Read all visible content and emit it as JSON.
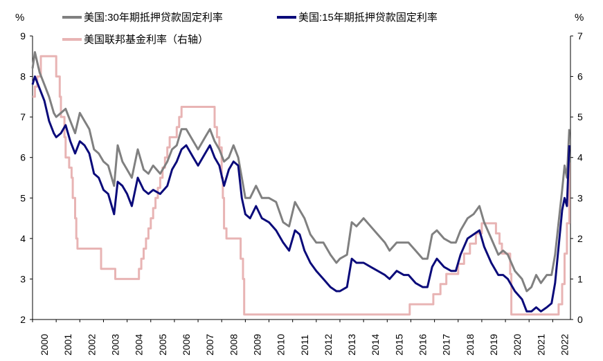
{
  "chart_data": {
    "type": "line",
    "title": "",
    "xlabel": "",
    "ylabel_left": "%",
    "ylabel_right": "%",
    "xlim": [
      2000,
      2022.75
    ],
    "ylim_left": [
      2,
      9
    ],
    "ylim_right": [
      0,
      7
    ],
    "left_ticks": [
      "2",
      "3",
      "4",
      "5",
      "6",
      "7",
      "8",
      "9"
    ],
    "right_ticks": [
      "0",
      "1",
      "2",
      "3",
      "4",
      "5",
      "6",
      "7"
    ],
    "x_ticks": [
      "2000",
      "2001",
      "2002",
      "2003",
      "2004",
      "2005",
      "2006",
      "2007",
      "2008",
      "2009",
      "2010",
      "2011",
      "2012",
      "2013",
      "2014",
      "2015",
      "2016",
      "2017",
      "2018",
      "2019",
      "2020",
      "2021",
      "2022"
    ],
    "grid": false,
    "legend_position": "top",
    "series": [
      {
        "name": "美国:30年期抵押贷款固定利率",
        "axis": "left",
        "color": "#808080",
        "x": [
          2000.0,
          2000.1,
          2000.3,
          2000.5,
          2000.7,
          2000.9,
          2001.0,
          2001.2,
          2001.4,
          2001.6,
          2001.8,
          2002.0,
          2002.2,
          2002.4,
          2002.6,
          2002.8,
          2003.0,
          2003.2,
          2003.45,
          2003.6,
          2003.8,
          2004.0,
          2004.2,
          2004.45,
          2004.7,
          2004.9,
          2005.1,
          2005.4,
          2005.7,
          2005.9,
          2006.1,
          2006.3,
          2006.5,
          2006.8,
          2007.0,
          2007.3,
          2007.5,
          2007.7,
          2007.9,
          2008.1,
          2008.3,
          2008.5,
          2008.7,
          2008.85,
          2009.0,
          2009.2,
          2009.45,
          2009.7,
          2010.0,
          2010.3,
          2010.6,
          2010.85,
          2011.1,
          2011.3,
          2011.5,
          2011.75,
          2012.0,
          2012.3,
          2012.6,
          2012.85,
          2013.0,
          2013.3,
          2013.5,
          2013.7,
          2014.0,
          2014.3,
          2014.6,
          2014.9,
          2015.1,
          2015.4,
          2015.7,
          2015.9,
          2016.2,
          2016.5,
          2016.7,
          2016.9,
          2017.1,
          2017.4,
          2017.7,
          2017.9,
          2018.1,
          2018.4,
          2018.65,
          2018.9,
          2019.1,
          2019.4,
          2019.7,
          2019.9,
          2020.1,
          2020.4,
          2020.7,
          2020.9,
          2021.1,
          2021.3,
          2021.5,
          2021.75,
          2021.95,
          2022.1,
          2022.25,
          2022.4,
          2022.5,
          2022.6,
          2022.7
        ],
        "values": [
          8.2,
          8.6,
          8.1,
          7.8,
          7.5,
          7.1,
          7.0,
          7.1,
          7.2,
          6.9,
          6.6,
          7.1,
          6.9,
          6.7,
          6.2,
          6.1,
          5.9,
          5.8,
          5.3,
          6.3,
          5.9,
          5.7,
          5.5,
          6.2,
          5.7,
          5.6,
          5.8,
          5.6,
          5.9,
          6.2,
          6.3,
          6.7,
          6.7,
          6.4,
          6.2,
          6.5,
          6.7,
          6.4,
          6.2,
          5.9,
          6.0,
          6.3,
          6.0,
          5.5,
          5.0,
          5.0,
          5.3,
          5.0,
          5.0,
          4.9,
          4.4,
          4.3,
          4.9,
          4.7,
          4.5,
          4.1,
          3.9,
          3.9,
          3.6,
          3.4,
          3.5,
          3.6,
          4.4,
          4.3,
          4.5,
          4.3,
          4.1,
          3.9,
          3.7,
          3.9,
          3.9,
          3.9,
          3.7,
          3.5,
          3.5,
          4.1,
          4.2,
          4.0,
          3.9,
          3.9,
          4.2,
          4.5,
          4.6,
          4.8,
          4.4,
          4.0,
          3.6,
          3.7,
          3.6,
          3.2,
          3.0,
          2.7,
          2.8,
          3.1,
          2.9,
          3.1,
          3.1,
          3.6,
          4.4,
          5.2,
          5.8,
          5.5,
          6.7
        ]
      },
      {
        "name": "美国:15年期抵押贷款固定利率",
        "axis": "left",
        "color": "#0a0a7a",
        "x": [
          2000.0,
          2000.1,
          2000.3,
          2000.5,
          2000.7,
          2000.9,
          2001.0,
          2001.2,
          2001.4,
          2001.6,
          2001.8,
          2002.0,
          2002.2,
          2002.4,
          2002.6,
          2002.8,
          2003.0,
          2003.2,
          2003.45,
          2003.6,
          2003.8,
          2004.0,
          2004.2,
          2004.45,
          2004.7,
          2004.9,
          2005.1,
          2005.4,
          2005.7,
          2005.9,
          2006.1,
          2006.3,
          2006.5,
          2006.8,
          2007.0,
          2007.3,
          2007.5,
          2007.7,
          2007.9,
          2008.1,
          2008.3,
          2008.5,
          2008.7,
          2008.85,
          2009.0,
          2009.2,
          2009.45,
          2009.7,
          2010.0,
          2010.3,
          2010.6,
          2010.85,
          2011.1,
          2011.3,
          2011.5,
          2011.75,
          2012.0,
          2012.3,
          2012.6,
          2012.85,
          2013.0,
          2013.3,
          2013.5,
          2013.7,
          2014.0,
          2014.3,
          2014.6,
          2014.9,
          2015.1,
          2015.4,
          2015.7,
          2015.9,
          2016.2,
          2016.5,
          2016.7,
          2016.9,
          2017.1,
          2017.4,
          2017.7,
          2017.9,
          2018.1,
          2018.4,
          2018.65,
          2018.9,
          2019.1,
          2019.4,
          2019.7,
          2019.9,
          2020.1,
          2020.4,
          2020.7,
          2020.9,
          2021.1,
          2021.3,
          2021.5,
          2021.75,
          2021.95,
          2022.1,
          2022.25,
          2022.4,
          2022.5,
          2022.6,
          2022.7
        ],
        "values": [
          7.8,
          8.0,
          7.7,
          7.4,
          6.9,
          6.6,
          6.5,
          6.6,
          6.8,
          6.4,
          6.1,
          6.4,
          6.3,
          6.1,
          5.6,
          5.5,
          5.2,
          5.1,
          4.6,
          5.4,
          5.3,
          5.1,
          4.8,
          5.5,
          5.2,
          5.1,
          5.2,
          5.1,
          5.3,
          5.7,
          5.9,
          6.2,
          6.3,
          6.0,
          5.8,
          6.1,
          6.3,
          6.0,
          5.8,
          5.3,
          5.7,
          5.9,
          5.8,
          5.0,
          4.6,
          4.5,
          4.8,
          4.5,
          4.4,
          4.2,
          3.9,
          3.7,
          4.2,
          4.1,
          3.7,
          3.4,
          3.2,
          3.0,
          2.8,
          2.7,
          2.7,
          2.8,
          3.5,
          3.4,
          3.4,
          3.3,
          3.2,
          3.1,
          3.0,
          3.2,
          3.1,
          3.1,
          2.9,
          2.8,
          2.8,
          3.3,
          3.5,
          3.3,
          3.2,
          3.2,
          3.6,
          4.0,
          4.1,
          4.2,
          3.8,
          3.4,
          3.1,
          3.1,
          3.0,
          2.7,
          2.5,
          2.2,
          2.2,
          2.3,
          2.2,
          2.3,
          2.4,
          2.9,
          3.8,
          4.7,
          5.0,
          4.8,
          6.3
        ]
      },
      {
        "name": "美国联邦基金利率（右轴）",
        "axis": "right",
        "color": "#e8b4b4",
        "x": [
          2000.0,
          2000.05,
          2000.1,
          2000.15,
          2000.2,
          2000.3,
          2000.35,
          2000.4,
          2000.45,
          2000.9,
          2001.0,
          2001.1,
          2001.15,
          2001.2,
          2001.3,
          2001.35,
          2001.4,
          2001.45,
          2001.55,
          2001.65,
          2001.7,
          2001.8,
          2001.85,
          2001.9,
          2002.0,
          2002.85,
          2002.9,
          2003.45,
          2003.5,
          2004.45,
          2004.5,
          2004.6,
          2004.7,
          2004.8,
          2004.9,
          2005.0,
          2005.1,
          2005.2,
          2005.3,
          2005.4,
          2005.5,
          2005.6,
          2005.7,
          2005.8,
          2005.9,
          2006.0,
          2006.1,
          2006.2,
          2006.3,
          2006.4,
          2006.5,
          2007.65,
          2007.7,
          2007.8,
          2007.9,
          2008.0,
          2008.05,
          2008.1,
          2008.2,
          2008.3,
          2008.75,
          2008.8,
          2008.9,
          2008.95,
          2015.9,
          2015.95,
          2016.9,
          2016.95,
          2017.2,
          2017.25,
          2017.45,
          2017.5,
          2017.95,
          2018.0,
          2018.2,
          2018.25,
          2018.45,
          2018.5,
          2018.7,
          2018.75,
          2018.95,
          2019.0,
          2019.55,
          2019.6,
          2019.7,
          2019.75,
          2019.8,
          2019.85,
          2020.15,
          2020.2,
          2020.25,
          2021.85,
          2022.2,
          2022.25,
          2022.35,
          2022.4,
          2022.45,
          2022.5,
          2022.55,
          2022.6,
          2022.7
        ],
        "values": [
          5.5,
          5.5,
          5.75,
          5.75,
          6.0,
          6.0,
          6.5,
          6.5,
          6.5,
          6.5,
          6.0,
          6.0,
          5.5,
          5.0,
          5.0,
          4.5,
          4.0,
          4.0,
          3.75,
          3.5,
          3.0,
          2.5,
          2.0,
          1.75,
          1.75,
          1.75,
          1.25,
          1.25,
          1.0,
          1.0,
          1.25,
          1.5,
          1.75,
          2.0,
          2.25,
          2.5,
          2.75,
          3.0,
          3.25,
          3.5,
          3.75,
          4.0,
          4.25,
          4.5,
          4.5,
          4.5,
          4.75,
          5.0,
          5.25,
          5.25,
          5.25,
          5.25,
          4.75,
          4.5,
          4.25,
          3.5,
          3.0,
          2.25,
          2.0,
          2.0,
          2.0,
          1.5,
          1.0,
          0.125,
          0.125,
          0.375,
          0.375,
          0.625,
          0.625,
          0.875,
          0.875,
          1.125,
          1.125,
          1.375,
          1.375,
          1.625,
          1.625,
          1.875,
          1.875,
          2.125,
          2.125,
          2.375,
          2.375,
          2.125,
          2.125,
          1.875,
          1.875,
          1.625,
          1.625,
          1.125,
          0.125,
          0.125,
          0.125,
          0.375,
          0.375,
          0.875,
          0.875,
          1.625,
          1.625,
          2.375,
          3.875
        ]
      }
    ]
  }
}
